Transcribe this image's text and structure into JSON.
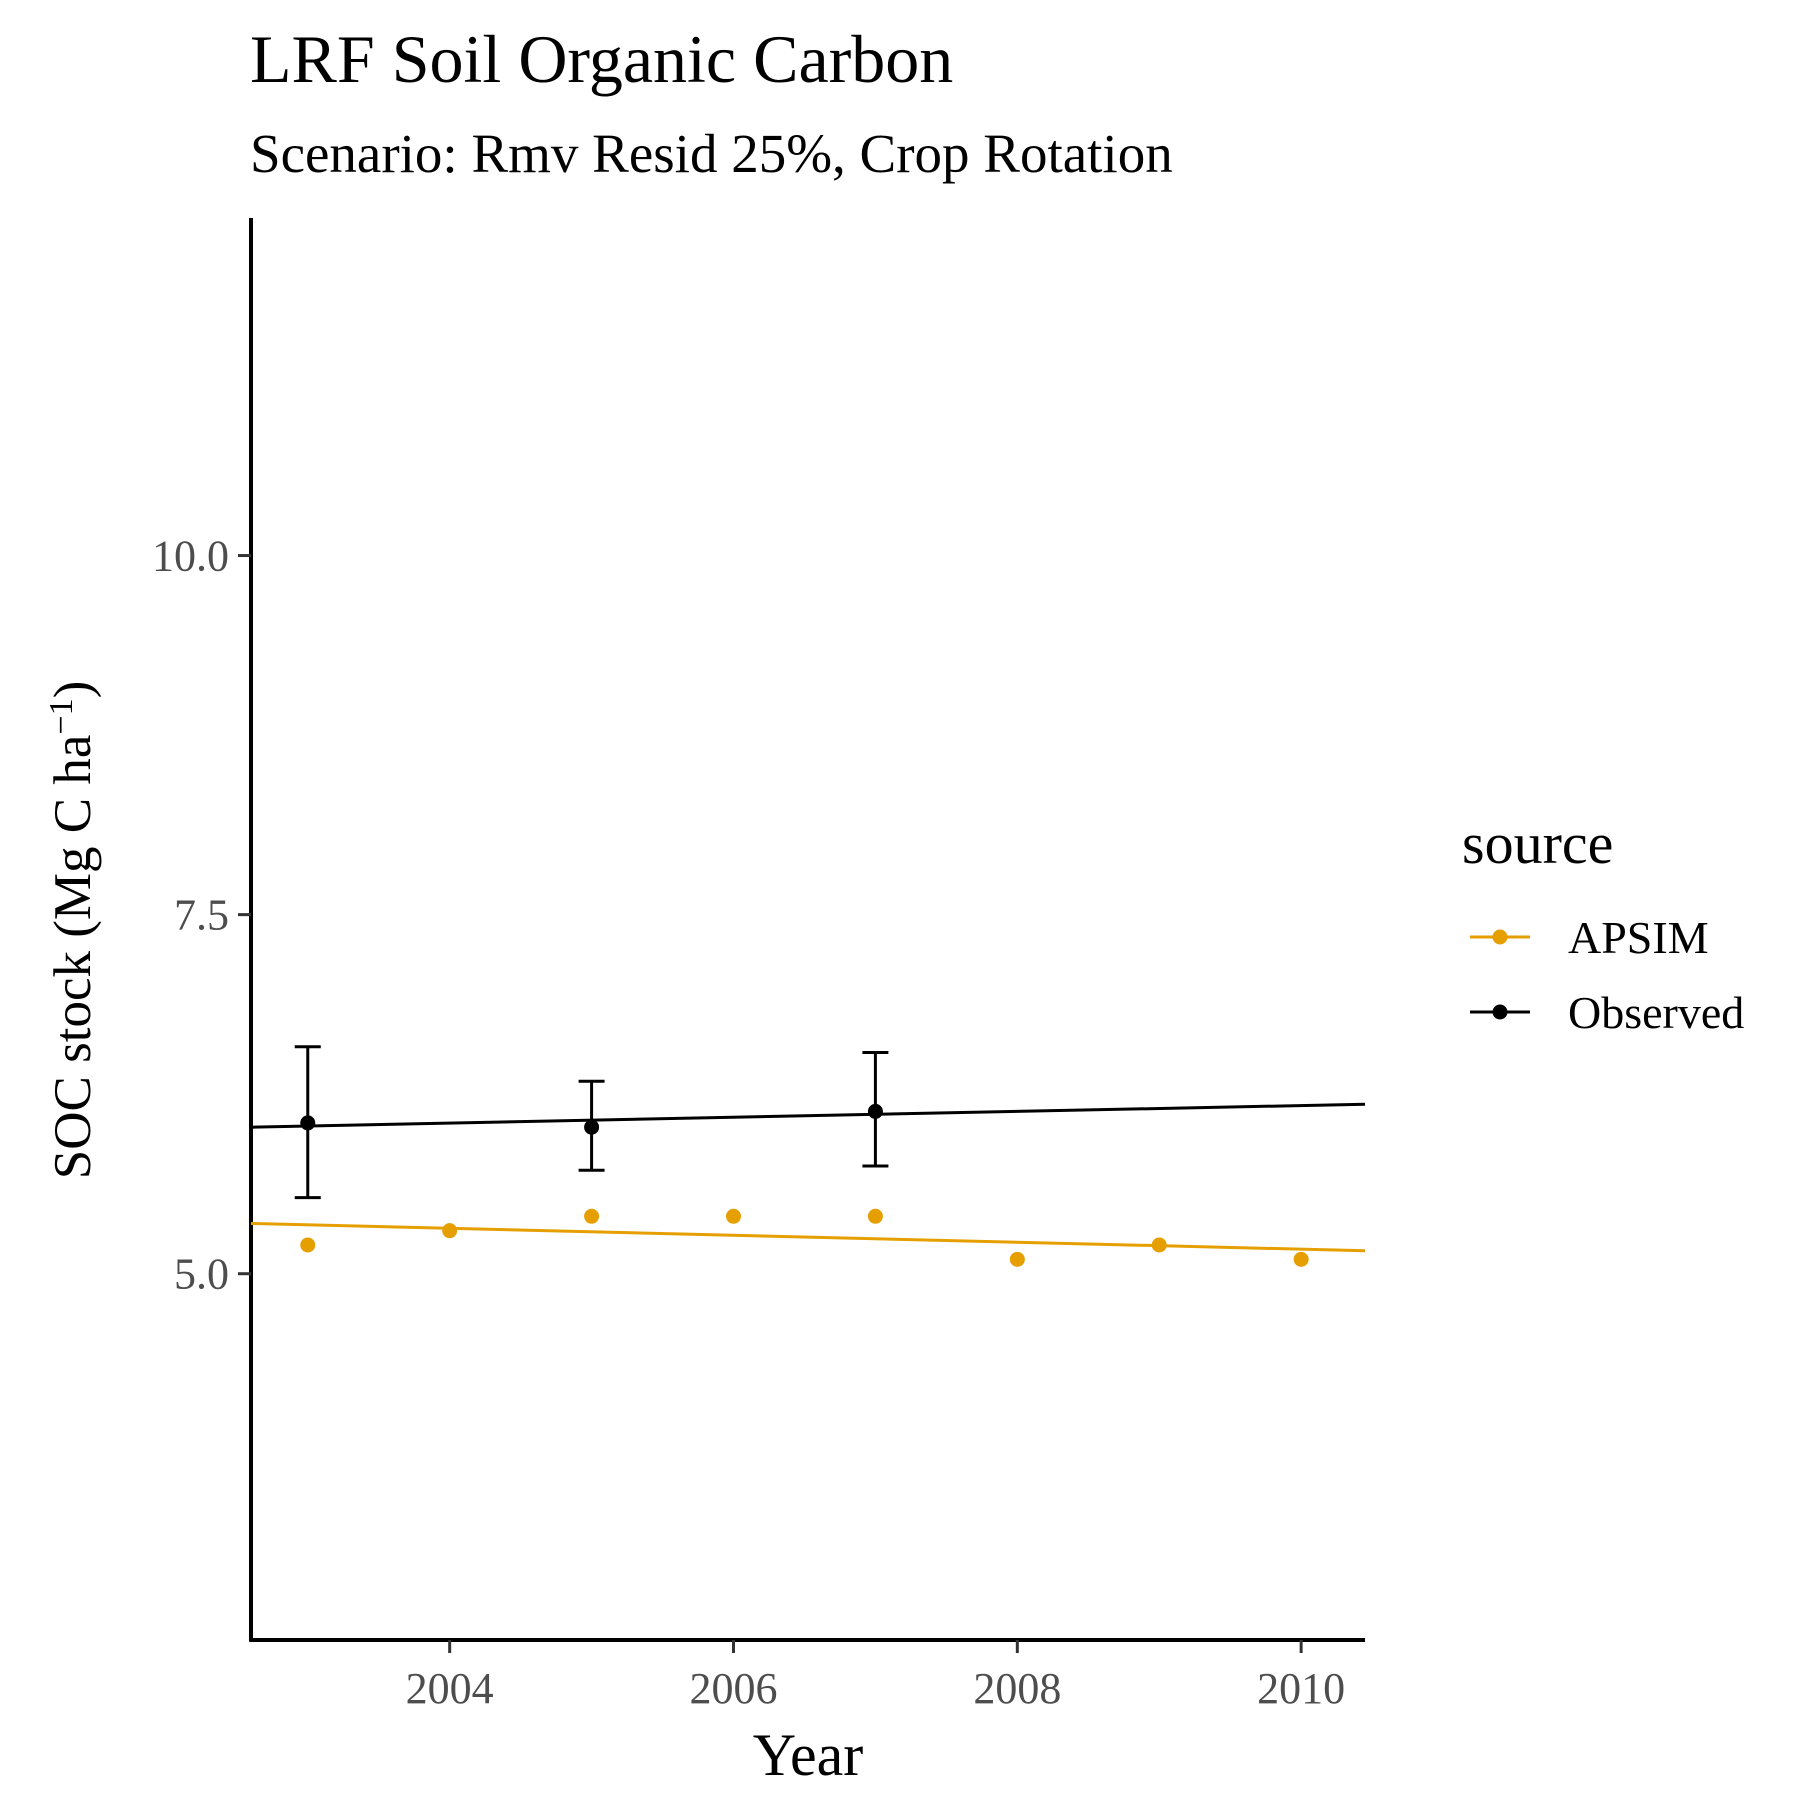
{
  "chart_data": {
    "type": "scatter",
    "title": "LRF Soil Organic Carbon",
    "subtitle": "Scenario: Rmv Resid 25%, Crop Rotation",
    "xlabel": "Year",
    "ylabel_main": "SOC stock (Mg C ha",
    "ylabel_sup": "−1",
    "ylabel_close": ")",
    "xlim": [
      2002.6,
      2010.45
    ],
    "ylim": [
      2.45,
      12.35
    ],
    "x_ticks": [
      2004,
      2006,
      2008,
      2010
    ],
    "x_tick_labels": [
      "2004",
      "2006",
      "2008",
      "2010"
    ],
    "y_ticks": [
      5.0,
      7.5,
      10.0
    ],
    "y_tick_labels": [
      "5.0",
      "7.5",
      "10.0"
    ],
    "grid": false,
    "legend": {
      "title": "source",
      "position": "right"
    },
    "series": [
      {
        "name": "APSIM",
        "color": "#E69F00",
        "x": [
          2003,
          2004,
          2005,
          2006,
          2007,
          2008,
          2009,
          2010
        ],
        "y": [
          5.2,
          5.3,
          5.4,
          5.4,
          5.4,
          5.1,
          5.2,
          5.1
        ],
        "trend": {
          "x": [
            2002.6,
            2010.45
          ],
          "y": [
            5.35,
            5.16
          ]
        }
      },
      {
        "name": "Observed",
        "color": "#000000",
        "x": [
          2003,
          2005,
          2007
        ],
        "y": [
          6.05,
          6.02,
          6.13
        ],
        "error_low": [
          5.53,
          5.72,
          5.75
        ],
        "error_high": [
          6.58,
          6.34,
          6.54
        ],
        "trend": {
          "x": [
            2002.6,
            2010.45
          ],
          "y": [
            6.02,
            6.18
          ]
        }
      }
    ]
  }
}
